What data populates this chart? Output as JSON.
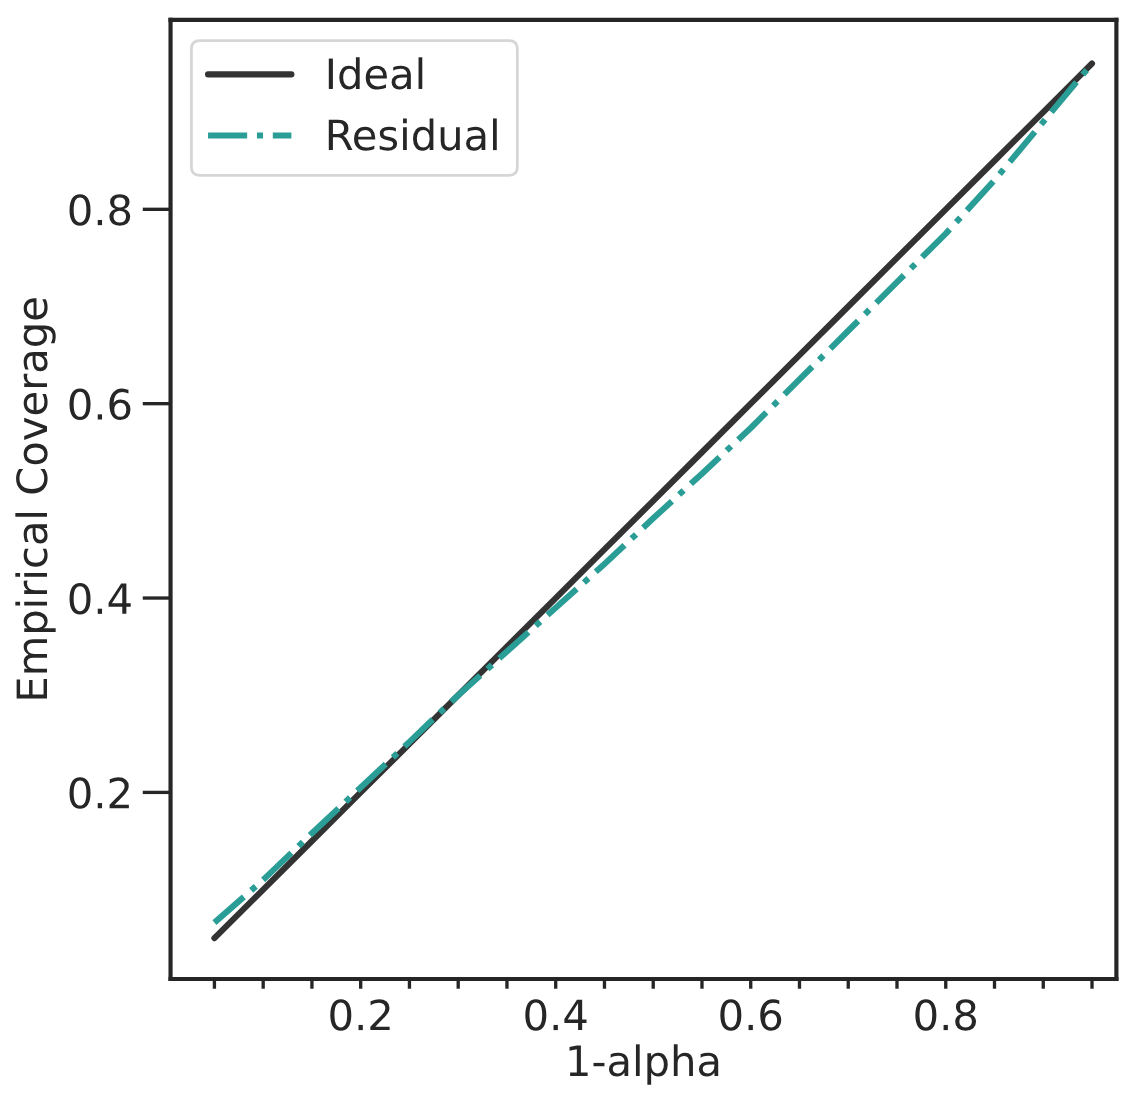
{
  "chart_data": {
    "type": "line",
    "xlabel": "1-alpha",
    "ylabel": "Empirical Coverage",
    "x": [
      0.05,
      0.1,
      0.15,
      0.2,
      0.25,
      0.3,
      0.35,
      0.4,
      0.45,
      0.5,
      0.55,
      0.6,
      0.65,
      0.7,
      0.75,
      0.8,
      0.85,
      0.9,
      0.95
    ],
    "series": [
      {
        "name": "Ideal",
        "color": "#333333",
        "line_style": "solid",
        "values": [
          0.05,
          0.1,
          0.15,
          0.2,
          0.25,
          0.3,
          0.35,
          0.4,
          0.45,
          0.5,
          0.55,
          0.6,
          0.65,
          0.7,
          0.75,
          0.8,
          0.85,
          0.9,
          0.95
        ]
      },
      {
        "name": "Residual",
        "color": "#2a9d96",
        "line_style": "dashdot",
        "values": [
          0.066,
          0.11,
          0.158,
          0.205,
          0.252,
          0.3,
          0.345,
          0.39,
          0.435,
          0.482,
          0.528,
          0.575,
          0.625,
          0.675,
          0.725,
          0.775,
          0.83,
          0.89,
          0.95
        ]
      }
    ],
    "xlim": [
      0.005,
      0.975
    ],
    "ylim": [
      0.008,
      0.995
    ],
    "xticks": [
      {
        "value": 0.05,
        "label": null
      },
      {
        "value": 0.1,
        "label": null
      },
      {
        "value": 0.15,
        "label": null
      },
      0.2,
      {
        "value": 0.25,
        "label": null
      },
      {
        "value": 0.3,
        "label": null
      },
      {
        "value": 0.35,
        "label": null
      },
      0.4,
      {
        "value": 0.45,
        "label": null
      },
      {
        "value": 0.5,
        "label": null
      },
      {
        "value": 0.55,
        "label": null
      },
      0.6,
      {
        "value": 0.65,
        "label": null
      },
      {
        "value": 0.7,
        "label": null
      },
      {
        "value": 0.75,
        "label": null
      },
      0.8,
      {
        "value": 0.85,
        "label": null
      },
      {
        "value": 0.9,
        "label": null
      },
      {
        "value": 0.95,
        "label": null
      }
    ],
    "yticks": [
      0.2,
      0.4,
      0.6,
      0.8
    ],
    "grid": false,
    "legend": "top left",
    "marker": "none"
  }
}
